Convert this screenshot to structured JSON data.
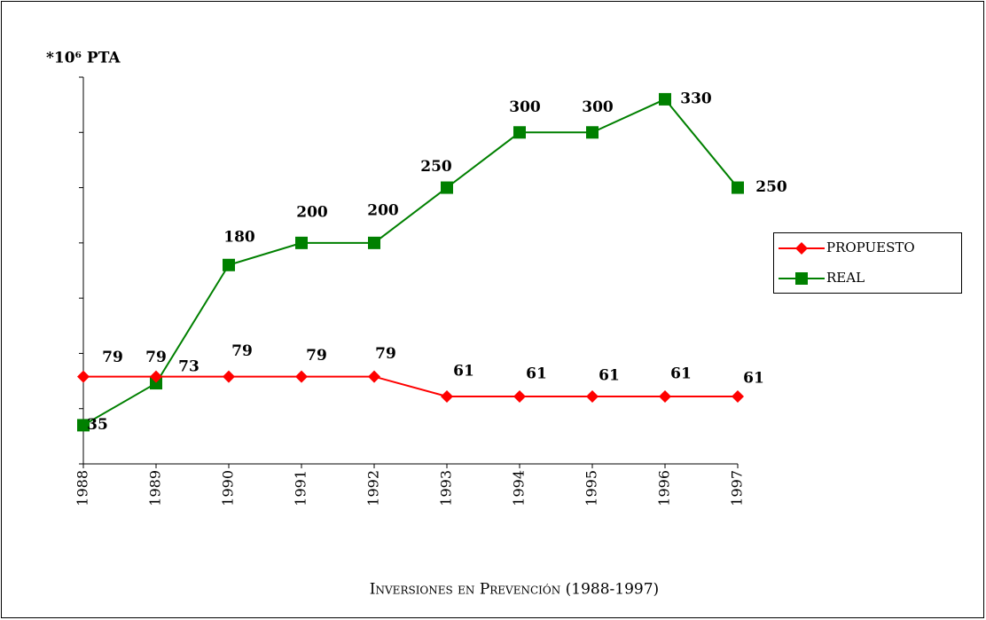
{
  "chart_data": {
    "type": "line",
    "title": "Inversiones en Prevención (1988-1997)",
    "y_label": "*10⁶ PTA",
    "categories": [
      "1988",
      "1989",
      "1990",
      "1991",
      "1992",
      "1993",
      "1994",
      "1995",
      "1996",
      "1997"
    ],
    "series": [
      {
        "name": "PROPUESTO",
        "color": "#ff0000",
        "values": [
          79,
          79,
          79,
          79,
          79,
          61,
          61,
          61,
          61,
          61
        ]
      },
      {
        "name": "REAL",
        "color": "#008000",
        "values": [
          35,
          73,
          180,
          200,
          200,
          250,
          300,
          300,
          330,
          250
        ]
      }
    ],
    "ylim": [
      0,
      350
    ],
    "yticks": [
      0,
      50,
      100,
      150,
      200,
      250,
      300,
      350
    ],
    "legend": "right"
  }
}
